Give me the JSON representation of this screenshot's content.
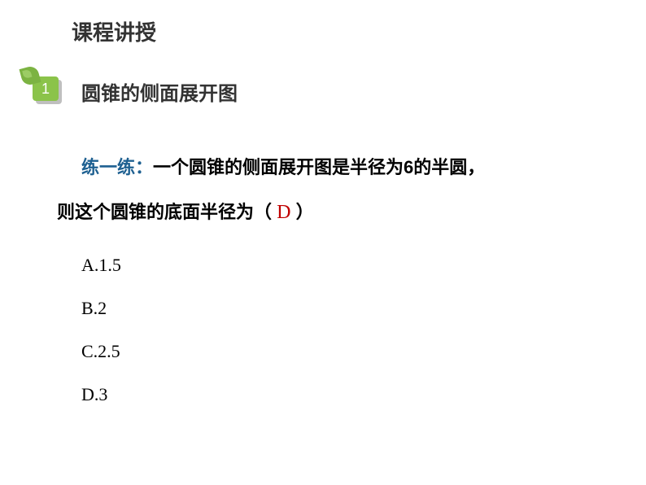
{
  "header": {
    "title": "课程讲授"
  },
  "badge": {
    "number": "1"
  },
  "section": {
    "title": "圆锥的侧面展开图"
  },
  "question": {
    "practice_label": "练一练：",
    "text_line1": "一个圆锥的侧面展开图是半径为6的半圆，",
    "text_line2_before": "则这个圆锥的底面半径为（",
    "answer": "D",
    "text_line2_after": "）"
  },
  "choices": {
    "a": "A.1.5",
    "b": "B.2",
    "c": "C.2.5",
    "d": "D.3"
  },
  "colors": {
    "header_text": "#333333",
    "badge_front": "#8bc34a",
    "badge_back": "#bfbfbf",
    "leaf": "#7cb342",
    "practice_label": "#1e6091",
    "answer": "#c00000",
    "body_text": "#000000",
    "background": "#ffffff"
  },
  "typography": {
    "header_fontsize": 26,
    "section_fontsize": 24,
    "body_fontsize": 22,
    "answer_fontsize": 24,
    "line_height": 2.4
  }
}
